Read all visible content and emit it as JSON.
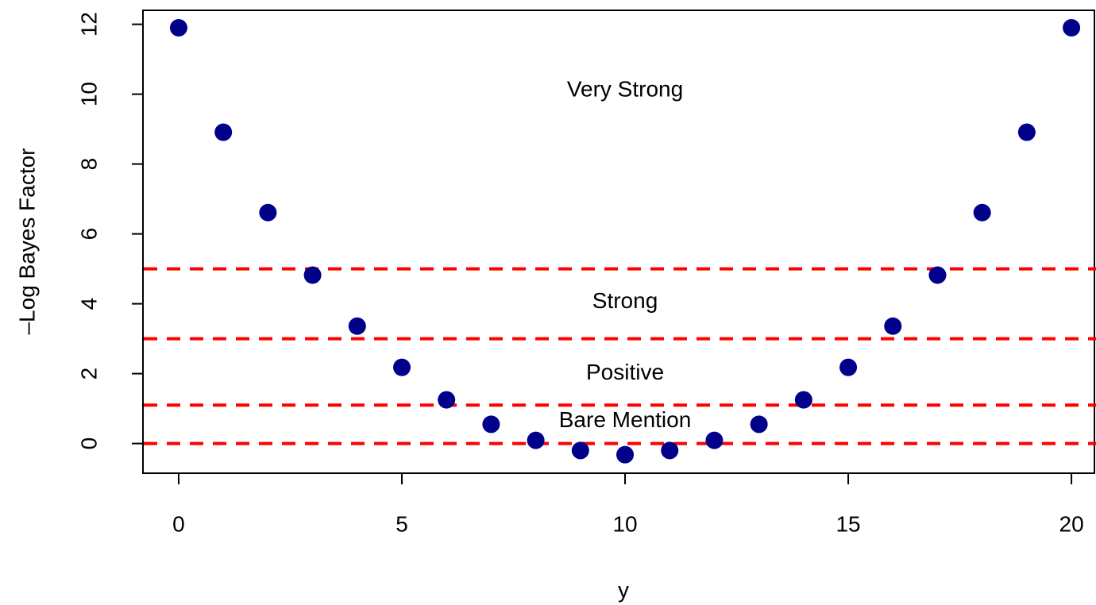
{
  "chart_data": {
    "type": "scatter",
    "x_label": "y",
    "y_label": "–Log Bayes Factor",
    "x": [
      0,
      1,
      2,
      3,
      4,
      5,
      6,
      7,
      8,
      9,
      10,
      11,
      12,
      13,
      14,
      15,
      16,
      17,
      18,
      19,
      20
    ],
    "series": [
      {
        "color": "#00008b",
        "values": [
          11.9,
          8.91,
          6.61,
          4.82,
          3.36,
          2.18,
          1.25,
          0.55,
          0.09,
          -0.2,
          -0.32,
          -0.2,
          0.09,
          0.55,
          1.25,
          2.18,
          3.36,
          4.82,
          6.61,
          8.91,
          11.9
        ]
      }
    ],
    "hlines": [
      0,
      1.1,
      3,
      5
    ],
    "hline_color": "#ff0000",
    "annotations": [
      {
        "text": "Very Strong",
        "x": 10,
        "y": 10.1
      },
      {
        "text": "Strong",
        "x": 10,
        "y": 4.05
      },
      {
        "text": "Positive",
        "x": 10,
        "y": 2.0
      },
      {
        "text": "Bare Mention",
        "x": 10,
        "y": 0.64
      }
    ],
    "xlim": [
      -0.8,
      20.55
    ],
    "ylim": [
      -0.85,
      12.4
    ],
    "xticks": [
      0,
      5,
      10,
      15,
      20
    ],
    "yticks": [
      0,
      2,
      4,
      6,
      8,
      10,
      12
    ]
  }
}
